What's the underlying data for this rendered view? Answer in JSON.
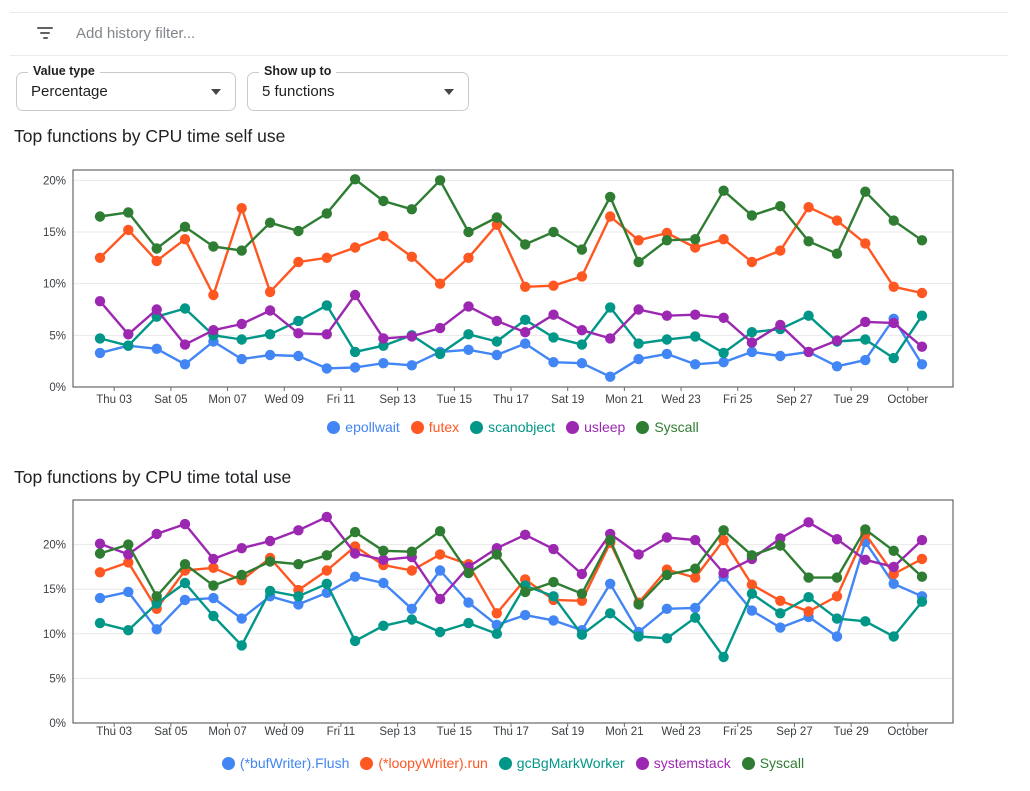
{
  "filter_bar": {
    "icon": "filter-list-icon",
    "placeholder": "Add history filter..."
  },
  "controls": [
    {
      "label": "Value type",
      "value": "Percentage"
    },
    {
      "label": "Show up to",
      "value": "5 functions"
    }
  ],
  "chart_data": [
    {
      "type": "line",
      "title": "Top functions by CPU time self use",
      "x_tick_labels": [
        "Thu 03",
        "Sat 05",
        "Mon 07",
        "Wed 09",
        "Fri 11",
        "Sep 13",
        "Tue 15",
        "Thu 17",
        "Sat 19",
        "Mon 21",
        "Wed 23",
        "Fri 25",
        "Sep 27",
        "Tue 29",
        "October"
      ],
      "yticks": [
        0,
        5,
        10,
        15,
        20
      ],
      "ytick_labels": [
        "0%",
        "5%",
        "10%",
        "15%",
        "20%"
      ],
      "ylim": [
        0,
        21
      ],
      "grid": true,
      "legend_position": "bottom",
      "series": [
        {
          "name": "epollwait",
          "color": "#4285F4",
          "values": [
            3.3,
            4.0,
            3.7,
            2.2,
            4.4,
            2.7,
            3.1,
            3.0,
            1.8,
            1.9,
            2.3,
            2.1,
            3.4,
            3.6,
            3.1,
            4.2,
            2.4,
            2.3,
            1.0,
            2.7,
            3.2,
            2.2,
            2.4,
            3.4,
            3.0,
            3.4,
            2.0,
            2.6,
            6.6,
            2.2
          ]
        },
        {
          "name": "futex",
          "color": "#FF5722",
          "values": [
            12.5,
            15.2,
            12.2,
            14.3,
            8.9,
            17.3,
            9.2,
            12.1,
            12.5,
            13.5,
            14.6,
            12.6,
            10.0,
            12.5,
            15.7,
            9.7,
            9.8,
            10.7,
            16.5,
            14.2,
            14.9,
            13.5,
            14.3,
            12.1,
            13.2,
            17.4,
            16.1,
            13.9,
            9.7,
            9.1
          ]
        },
        {
          "name": "scanobject",
          "color": "#009688",
          "values": [
            4.7,
            4.0,
            6.8,
            7.6,
            5.0,
            4.6,
            5.1,
            6.4,
            7.9,
            3.4,
            4.0,
            5.0,
            3.2,
            5.1,
            4.4,
            6.5,
            4.8,
            4.1,
            7.7,
            4.2,
            4.6,
            4.9,
            3.3,
            5.3,
            5.6,
            6.9,
            4.4,
            4.6,
            2.8,
            6.9
          ]
        },
        {
          "name": "usleep",
          "color": "#9C27B0",
          "values": [
            8.3,
            5.1,
            7.5,
            4.1,
            5.5,
            6.1,
            7.4,
            5.2,
            5.1,
            8.9,
            4.7,
            4.9,
            5.7,
            7.8,
            6.4,
            5.3,
            7.0,
            5.5,
            4.7,
            7.5,
            6.9,
            7.0,
            6.7,
            4.3,
            6.0,
            3.4,
            4.5,
            6.3,
            6.2,
            3.9
          ]
        },
        {
          "name": "Syscall",
          "color": "#2E7D32",
          "values": [
            16.5,
            16.9,
            13.4,
            15.5,
            13.6,
            13.2,
            15.9,
            15.1,
            16.8,
            20.1,
            18.0,
            17.2,
            20.0,
            15.0,
            16.4,
            13.8,
            15.0,
            13.3,
            18.4,
            12.1,
            14.2,
            14.3,
            19.0,
            16.6,
            17.5,
            14.1,
            12.9,
            18.9,
            16.1,
            14.2
          ]
        }
      ]
    },
    {
      "type": "line",
      "title": "Top functions by CPU time total use",
      "x_tick_labels": [
        "Thu 03",
        "Sat 05",
        "Mon 07",
        "Wed 09",
        "Fri 11",
        "Sep 13",
        "Tue 15",
        "Thu 17",
        "Sat 19",
        "Mon 21",
        "Wed 23",
        "Fri 25",
        "Sep 27",
        "Tue 29",
        "October"
      ],
      "yticks": [
        0,
        5,
        10,
        15,
        20
      ],
      "ytick_labels": [
        "0%",
        "5%",
        "10%",
        "15%",
        "20%"
      ],
      "ylim": [
        0,
        25
      ],
      "grid": true,
      "legend_position": "bottom",
      "series": [
        {
          "name": "(*bufWriter).Flush",
          "color": "#4285F4",
          "values": [
            14.0,
            14.7,
            10.5,
            13.8,
            14.0,
            11.7,
            14.2,
            13.3,
            14.6,
            16.4,
            15.7,
            12.8,
            17.1,
            13.5,
            11.0,
            12.1,
            11.5,
            10.4,
            15.6,
            10.2,
            12.8,
            12.9,
            16.4,
            12.6,
            10.7,
            11.9,
            9.7,
            20.3,
            15.6,
            14.2
          ]
        },
        {
          "name": "(*loopyWriter).run",
          "color": "#FF5722",
          "values": [
            16.9,
            18.0,
            12.8,
            17.1,
            17.4,
            16.0,
            18.5,
            14.9,
            17.1,
            19.8,
            17.7,
            17.1,
            18.9,
            17.8,
            12.3,
            16.1,
            13.8,
            13.7,
            20.2,
            13.5,
            17.2,
            16.3,
            20.5,
            15.5,
            13.7,
            12.5,
            14.2,
            21.2,
            16.7,
            18.4
          ]
        },
        {
          "name": "gcBgMarkWorker",
          "color": "#009688",
          "values": [
            11.2,
            10.4,
            13.4,
            15.7,
            12.0,
            8.7,
            14.8,
            14.2,
            15.6,
            9.2,
            10.9,
            11.6,
            10.2,
            11.2,
            10.0,
            15.4,
            14.2,
            9.9,
            12.3,
            9.7,
            9.5,
            11.8,
            7.4,
            14.5,
            12.3,
            14.1,
            11.7,
            11.4,
            9.7,
            13.6
          ]
        },
        {
          "name": "systemstack",
          "color": "#9C27B0",
          "values": [
            20.1,
            18.9,
            21.2,
            22.3,
            18.4,
            19.6,
            20.4,
            21.6,
            23.1,
            19.0,
            18.3,
            18.6,
            13.9,
            17.5,
            19.6,
            21.1,
            19.5,
            16.7,
            21.2,
            18.9,
            20.8,
            20.5,
            16.8,
            18.4,
            20.7,
            22.5,
            20.6,
            18.3,
            17.5,
            20.5
          ]
        },
        {
          "name": "Syscall",
          "color": "#2E7D32",
          "values": [
            19.0,
            20.0,
            14.2,
            17.8,
            15.4,
            16.6,
            18.1,
            17.8,
            18.8,
            21.4,
            19.3,
            19.2,
            21.5,
            16.8,
            18.9,
            14.7,
            15.8,
            14.5,
            20.5,
            13.3,
            16.6,
            17.3,
            21.6,
            18.8,
            19.9,
            16.3,
            16.3,
            21.7,
            19.3,
            16.4
          ]
        }
      ]
    }
  ]
}
